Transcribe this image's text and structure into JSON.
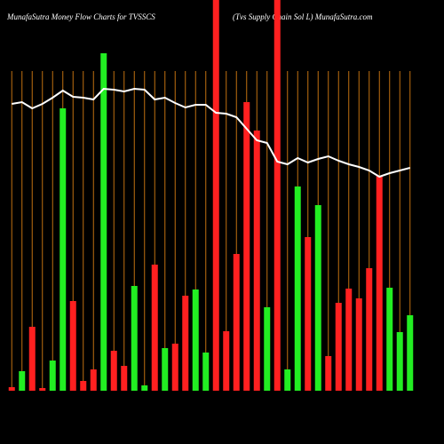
{
  "chart_data": {
    "type": "bar",
    "title": "MunafaSutra  Money Flow  Charts for TVSSCS",
    "subtitle": "(Tvs Supply Chain  Sol L) MunafaSutra.com",
    "values": [
      4,
      22,
      72,
      3,
      34,
      318,
      101,
      11,
      24,
      380,
      45,
      28,
      118,
      6,
      142,
      48,
      53,
      107,
      114,
      43,
      440,
      67,
      154,
      325,
      293,
      94,
      440,
      24,
      230,
      173,
      209,
      39,
      99,
      115,
      104,
      138,
      242,
      116,
      66,
      85
    ],
    "colors": [
      "#ff2020",
      "#22ee22",
      "#ff2020",
      "#ff2020",
      "#22ee22",
      "#22ee22",
      "#ff2020",
      "#ff2020",
      "#ff2020",
      "#22ee22",
      "#ff2020",
      "#ff2020",
      "#22ee22",
      "#22ee22",
      "#ff2020",
      "#22ee22",
      "#ff2020",
      "#ff2020",
      "#22ee22",
      "#22ee22",
      "#ff2020",
      "#ff2020",
      "#ff2020",
      "#ff2020",
      "#ff2020",
      "#22ee22",
      "#ff2020",
      "#22ee22",
      "#22ee22",
      "#ff2020",
      "#22ee22",
      "#ff2020",
      "#ff2020",
      "#ff2020",
      "#ff2020",
      "#ff2020",
      "#ff2020",
      "#22ee22",
      "#22ee22",
      "#22ee22"
    ],
    "ylim": [
      0,
      440
    ],
    "price": {
      "color": "#ffffff",
      "axis": "y2",
      "values": [
        323,
        325,
        318,
        323,
        330,
        338,
        331,
        330,
        328,
        340,
        339,
        337,
        340,
        339,
        328,
        330,
        324,
        319,
        322,
        322,
        313,
        312,
        308,
        295,
        282,
        279,
        258,
        255,
        262,
        257,
        261,
        264,
        259,
        255,
        252,
        248,
        241,
        245,
        248,
        251
      ]
    },
    "y2lim": [
      0,
      440
    ],
    "gridline_color": "#c07010"
  }
}
